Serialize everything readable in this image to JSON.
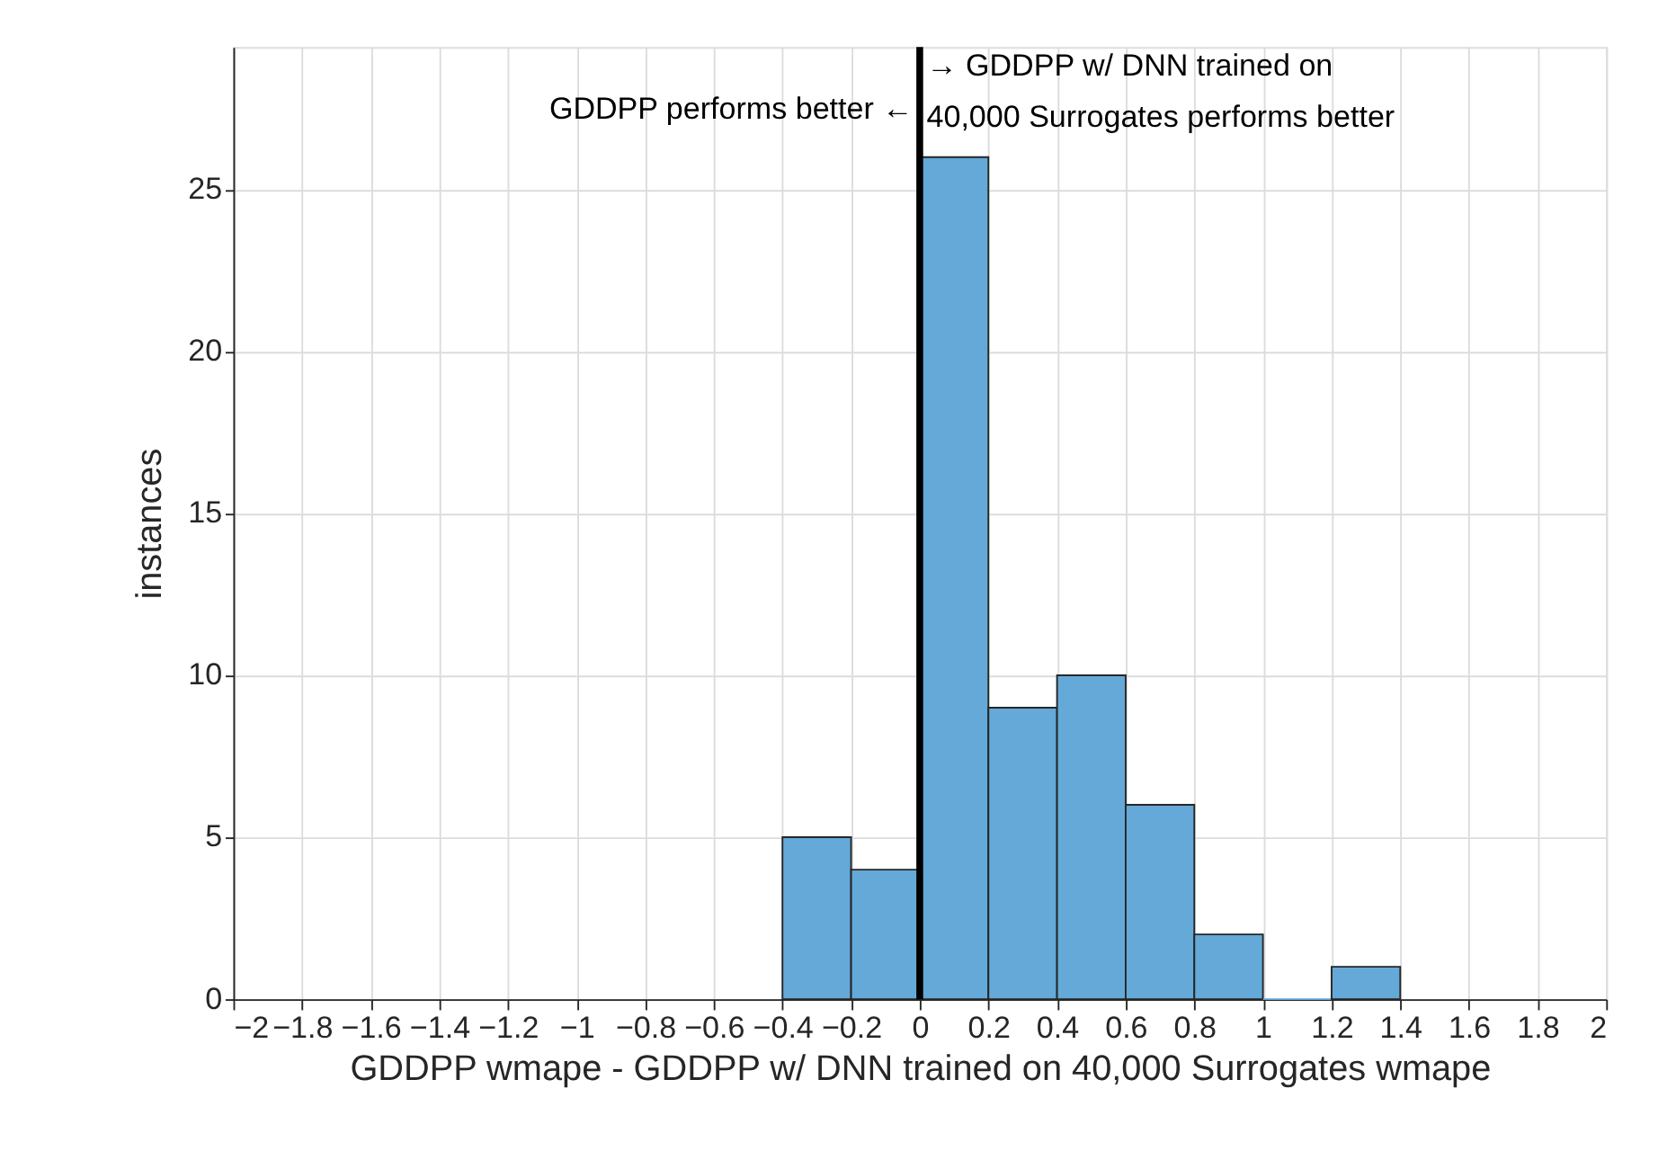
{
  "chart_data": {
    "type": "histogram",
    "xlabel": "GDDPP wmape - GDDPP w/ DNN trained on 40,000 Surrogates wmape",
    "ylabel": "instances",
    "bins": [
      -0.4,
      -0.2,
      0,
      0.2,
      0.4,
      0.6,
      0.8,
      1.0,
      1.2,
      1.4
    ],
    "values": [
      5,
      4,
      26,
      9,
      10,
      6,
      2,
      0,
      1
    ],
    "color": "#64a9d8",
    "xlim": [
      -2,
      2
    ],
    "xticks": [
      -2,
      -1.8,
      -1.6,
      -1.4,
      -1.2,
      -1,
      -0.8,
      -0.6,
      -0.4,
      -0.2,
      0,
      0.2,
      0.4,
      0.6,
      0.8,
      1,
      1.2,
      1.4,
      1.6,
      1.8,
      2
    ],
    "ylim": [
      0,
      29.4
    ],
    "yticks": [
      0,
      5,
      10,
      15,
      20,
      25
    ],
    "grid": true,
    "ref_lines": [
      {
        "axis": "x",
        "value": 0,
        "color": "#000000",
        "line_style": "solid"
      }
    ],
    "annotations": [
      "GDDPP performs better ←",
      "→ GDDPP w/ DNN trained on\n40,000 Surrogates performs better"
    ]
  }
}
